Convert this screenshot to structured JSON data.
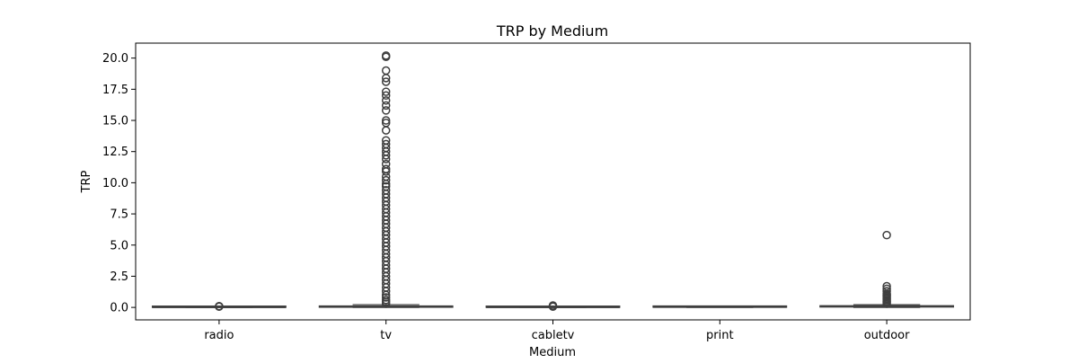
{
  "chart_data": {
    "type": "box",
    "title": "TRP by Medium",
    "xlabel": "Medium",
    "ylabel": "TRP",
    "ylim": [
      -1.0,
      21.2
    ],
    "yticks": [
      0.0,
      2.5,
      5.0,
      7.5,
      10.0,
      12.5,
      15.0,
      17.5,
      20.0
    ],
    "ytick_labels": [
      "0.0",
      "2.5",
      "5.0",
      "7.5",
      "10.0",
      "12.5",
      "15.0",
      "17.5",
      "20.0"
    ],
    "categories": [
      "radio",
      "tv",
      "cabletv",
      "print",
      "outdoor"
    ],
    "grid": false,
    "box_color": "#3f3f3f",
    "boxes": [
      {
        "category": "radio",
        "whisker_low": 0.0,
        "q1": 0.0,
        "median": 0.0,
        "q3": 0.02,
        "whisker_high": 0.04,
        "outliers": [
          0.06,
          0.08,
          0.1
        ]
      },
      {
        "category": "tv",
        "whisker_low": 0.0,
        "q1": 0.01,
        "median": 0.05,
        "q3": 0.1,
        "whisker_high": 0.22,
        "outliers": [
          0.3,
          0.45,
          0.6,
          0.8,
          1.0,
          1.3,
          1.6,
          1.9,
          2.2,
          2.5,
          2.8,
          3.1,
          3.4,
          3.7,
          4.0,
          4.3,
          4.6,
          4.9,
          5.2,
          5.5,
          5.8,
          6.1,
          6.4,
          6.7,
          7.0,
          7.3,
          7.6,
          7.9,
          8.2,
          8.5,
          8.8,
          9.1,
          9.4,
          9.7,
          9.9,
          10.2,
          10.5,
          10.9,
          11.1,
          11.5,
          11.9,
          12.2,
          12.5,
          12.8,
          13.1,
          13.4,
          14.2,
          14.8,
          15.0,
          15.8,
          16.2,
          16.6,
          17.0,
          17.3,
          18.1,
          18.4,
          19.0,
          20.1,
          20.2
        ]
      },
      {
        "category": "cabletv",
        "whisker_low": 0.0,
        "q1": 0.0,
        "median": 0.0,
        "q3": 0.02,
        "whisker_high": 0.04,
        "outliers": [
          0.06,
          0.09,
          0.12,
          0.15
        ]
      },
      {
        "category": "print",
        "whisker_low": 0.0,
        "q1": 0.01,
        "median": 0.02,
        "q3": 0.05,
        "whisker_high": 0.08,
        "outliers": []
      },
      {
        "category": "outdoor",
        "whisker_low": 0.0,
        "q1": 0.03,
        "median": 0.08,
        "q3": 0.13,
        "whisker_high": 0.22,
        "outliers": [
          0.3,
          0.4,
          0.5,
          0.6,
          0.7,
          0.8,
          0.9,
          1.0,
          1.1,
          1.3,
          1.5,
          1.7,
          5.8
        ]
      }
    ]
  }
}
